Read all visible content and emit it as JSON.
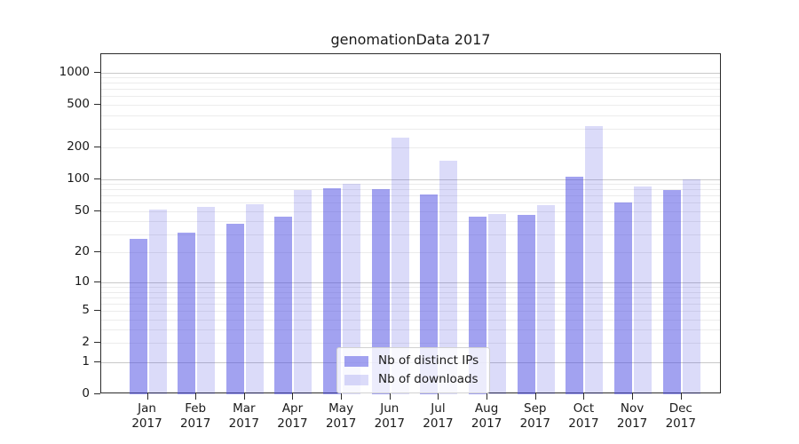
{
  "chart_data": {
    "type": "bar",
    "title": "genomationData 2017",
    "categories": [
      "Jan 2017",
      "Feb 2017",
      "Mar 2017",
      "Apr 2017",
      "May 2017",
      "Jun 2017",
      "Jul 2017",
      "Aug 2017",
      "Sep 2017",
      "Oct 2017",
      "Nov 2017",
      "Dec 2017"
    ],
    "series": [
      {
        "name": "Nb of distinct IPs",
        "color": "rgba(77,77,226,0.52)",
        "values": [
          27,
          31,
          38,
          44,
          83,
          80,
          72,
          44,
          46,
          106,
          60,
          79
        ]
      },
      {
        "name": "Nb of downloads",
        "color": "rgba(77,77,226,0.20)",
        "values": [
          52,
          55,
          58,
          79,
          91,
          245,
          150,
          47,
          57,
          315,
          86,
          100
        ]
      }
    ],
    "xlabel": "",
    "ylabel": "",
    "yscale": "log1p",
    "yticks": [
      1000,
      500,
      200,
      100,
      50,
      20,
      10,
      5,
      2,
      1,
      0
    ],
    "ylim": [
      0,
      1480
    ],
    "grid": {
      "on": true,
      "major_values": [
        1,
        10,
        100,
        1000
      ],
      "major_color": "#c9c9c9",
      "minor_color": "#ececec"
    },
    "legend": {
      "position": "lower-center"
    }
  },
  "colors": {
    "axis": "#2b2b2b",
    "text": "#1a1a1a",
    "background": "#ffffff"
  }
}
